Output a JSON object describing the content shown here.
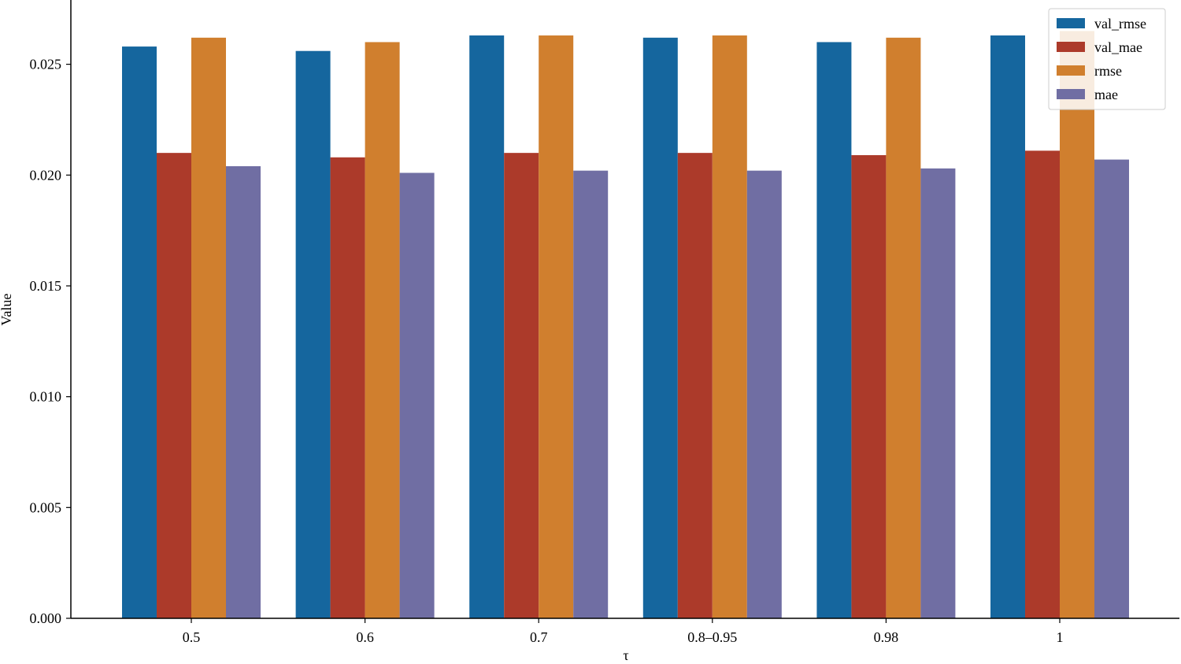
{
  "chart_data": {
    "type": "bar",
    "title": "",
    "xlabel": "τ",
    "ylabel": "Value",
    "categories": [
      "0.5",
      "0.6",
      "0.7",
      "0.8–0.95",
      "0.98",
      "1"
    ],
    "ylim": [
      0,
      0.0279
    ],
    "yticks": [
      "0.000",
      "0.005",
      "0.010",
      "0.015",
      "0.020",
      "0.025"
    ],
    "ytick_values": [
      0,
      0.005,
      0.01,
      0.015,
      0.02,
      0.025
    ],
    "grid": false,
    "legend_position": "top-right",
    "series": [
      {
        "name": "val_rmse",
        "color": "#15669E",
        "values": [
          0.0258,
          0.0256,
          0.0263,
          0.0262,
          0.026,
          0.0263
        ]
      },
      {
        "name": "val_mae",
        "color": "#AC3A2A",
        "values": [
          0.021,
          0.0208,
          0.021,
          0.021,
          0.0209,
          0.0211
        ]
      },
      {
        "name": "rmse",
        "color": "#D07F2E",
        "values": [
          0.0262,
          0.026,
          0.0263,
          0.0263,
          0.0262,
          0.0265
        ]
      },
      {
        "name": "mae",
        "color": "#706EA3",
        "values": [
          0.0204,
          0.0201,
          0.0202,
          0.0202,
          0.0203,
          0.0207
        ]
      }
    ]
  }
}
